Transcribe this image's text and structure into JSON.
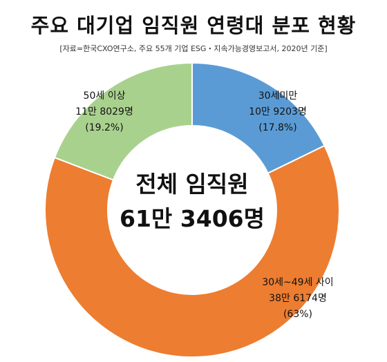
{
  "header": {
    "title": "주요 대기업 임직원 연령대 분포 현황",
    "source": "[자료=한국CXO연구소, 주요 55개 기업 ESG・지속가능경영보고서, 2020년 기준]"
  },
  "chart_data": {
    "type": "pie",
    "variant": "donut",
    "center_label": [
      "전체 임직원",
      "61만 3406명"
    ],
    "slices": [
      {
        "name": "30세미만",
        "value": 17.8,
        "count": "10만 9203명",
        "pct_label": "(17.8%)",
        "color": "#5b9bd5"
      },
      {
        "name": "30세~49세 사이",
        "value": 63,
        "count": "38만 6174명",
        "pct_label": "(63%)",
        "color": "#ed7d31"
      },
      {
        "name": "50세 이상",
        "value": 19.2,
        "count": "11만 8029명",
        "pct_label": "(19.2%)",
        "color": "#a9d18e"
      }
    ]
  }
}
